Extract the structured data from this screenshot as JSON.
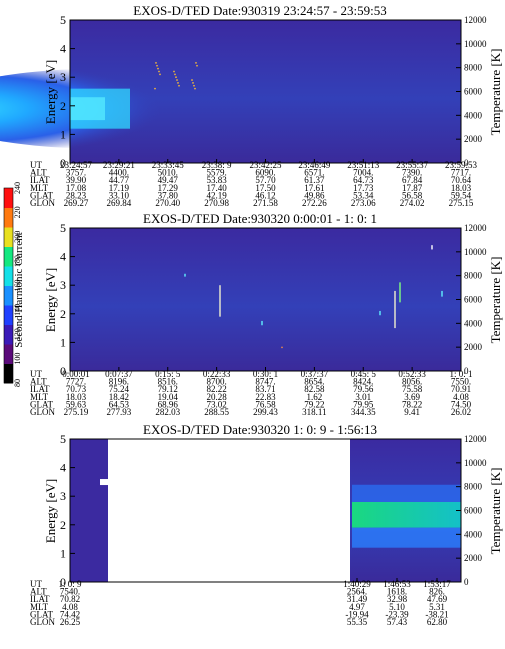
{
  "chart_data": [
    {
      "type": "heatmap",
      "title": "EXOS-D/TED   Date:930319  23:24:57 - 23:59:53",
      "ylabel": "Energy [eV]",
      "y2label": "Temperature [K]",
      "ylim": [
        0,
        5
      ],
      "y2lim": [
        0,
        12000
      ],
      "yticks": [
        "0",
        "1",
        "2",
        "3",
        "4",
        "5"
      ],
      "y2ticks": [
        "0",
        "2000",
        "4000",
        "6000",
        "8000",
        "10000",
        "12000"
      ],
      "x_labels": [
        "23:24:57",
        "23:29:21",
        "23:33:45",
        "23:38: 9",
        "23:42:25",
        "23:46:49",
        "23:51:13",
        "23:55:37",
        "23:59:53"
      ],
      "data_coverage": "full",
      "features": "broad enhancement between 1 and 3 eV fading after 23:39",
      "orbit_rows": [
        {
          "name": "UT",
          "values": [
            "23:24:57",
            "23:29:21",
            "23:33:45",
            "23:38: 9",
            "23:42:25",
            "23:46:49",
            "23:51:13",
            "23:55:37",
            "23:59:53"
          ]
        },
        {
          "name": "ALT",
          "values": [
            "3757.",
            "4400.",
            "5010.",
            "5579.",
            "6090.",
            "6571.",
            "7004.",
            "7390.",
            "7717."
          ]
        },
        {
          "name": "ILAT",
          "values": [
            "39.90",
            "44.77",
            "49.47",
            "53.83",
            "57.70",
            "61.37",
            "64.73",
            "67.84",
            "70.64"
          ]
        },
        {
          "name": "MLT",
          "values": [
            "17.08",
            "17.19",
            "17.29",
            "17.40",
            "17.50",
            "17.61",
            "17.73",
            "17.87",
            "18.03"
          ]
        },
        {
          "name": "GLAT",
          "values": [
            "28.23",
            "33.10",
            "37.80",
            "42.19",
            "46.12",
            "49.86",
            "53.34",
            "56.58",
            "59.54"
          ]
        },
        {
          "name": "GLON",
          "values": [
            "269.27",
            "269.84",
            "270.40",
            "270.98",
            "271.58",
            "272.26",
            "273.06",
            "274.02",
            "275.15"
          ]
        }
      ]
    },
    {
      "type": "heatmap",
      "title": "EXOS-D/TED   Date:930320  0:00:01 - 1: 0: 1",
      "ylabel": "Energy [eV]",
      "y2label": "Temperature [K]",
      "ylim": [
        0,
        5
      ],
      "y2lim": [
        0,
        12000
      ],
      "yticks": [
        "0",
        "1",
        "2",
        "3",
        "4",
        "5"
      ],
      "y2ticks": [
        "0",
        "2000",
        "4000",
        "6000",
        "8000",
        "10000",
        "12000"
      ],
      "x_labels": [
        "0:00:01",
        "0:07:37",
        "0:15: 5",
        "0:22:33",
        "0:30: 1",
        "0:37:37",
        "0:45: 5",
        "0:52:33",
        "1: 0: 1"
      ],
      "data_coverage": "full",
      "features": "uniform low level with scattered spikes",
      "orbit_rows": [
        {
          "name": "UT",
          "values": [
            "0:00:01",
            "0:07:37",
            "0:15: 5",
            "0:22:33",
            "0:30: 1",
            "0:37:37",
            "0:45: 5",
            "0:52:33",
            "1: 0: 1"
          ]
        },
        {
          "name": "ALT",
          "values": [
            "7727.",
            "8196.",
            "8516.",
            "8700.",
            "8747.",
            "8654.",
            "8424.",
            "8056.",
            "7550."
          ]
        },
        {
          "name": "ILAT",
          "values": [
            "70.73",
            "75.24",
            "79.12",
            "82.22",
            "83.71",
            "82.58",
            "79.56",
            "75.58",
            "70.91"
          ]
        },
        {
          "name": "MLT",
          "values": [
            "18.03",
            "18.42",
            "19.04",
            "20.28",
            "22.83",
            "1.62",
            "3.01",
            "3.69",
            "4.08"
          ]
        },
        {
          "name": "GLAT",
          "values": [
            "59.63",
            "64.53",
            "68.96",
            "73.02",
            "76.58",
            "79.22",
            "79.95",
            "78.22",
            "74.50"
          ]
        },
        {
          "name": "GLON",
          "values": [
            "275.19",
            "277.93",
            "282.03",
            "288.55",
            "299.43",
            "318.11",
            "344.35",
            "9.41",
            "26.02"
          ]
        }
      ]
    },
    {
      "type": "heatmap",
      "title": "EXOS-D/TED   Date:930320  1: 0: 9 - 1:56:13",
      "ylabel": "Energy [eV]",
      "y2label": "Temperature [K]",
      "ylim": [
        0,
        5
      ],
      "y2lim": [
        0,
        12000
      ],
      "yticks": [
        "0",
        "1",
        "2",
        "3",
        "4",
        "5"
      ],
      "y2ticks": [
        "0",
        "2000",
        "4000",
        "6000",
        "8000",
        "10000",
        "12000"
      ],
      "x_labels": [
        "1: 0: 9",
        "1:40:29",
        "1:46:53",
        "1:53:17"
      ],
      "data_coverage": "partial",
      "features": "data only at start and after 1:40; enhancement 1-3 eV late in pass",
      "orbit_rows": [
        {
          "name": "UT",
          "values": [
            "1: 0: 9",
            "1:40:29",
            "1:46:53",
            "1:53:17"
          ]
        },
        {
          "name": "ALT",
          "values": [
            "7540.",
            "2564.",
            "1618.",
            "826."
          ]
        },
        {
          "name": "ILAT",
          "values": [
            "70.82",
            "31.49",
            "32.98",
            "47.69"
          ]
        },
        {
          "name": "MLT",
          "values": [
            "4.08",
            "4.97",
            "5.10",
            "5.31"
          ]
        },
        {
          "name": "GLAT",
          "values": [
            "74.42",
            "-19.94",
            "-23.39",
            "-38.21"
          ]
        },
        {
          "name": "GLON",
          "values": [
            "26.25",
            "55.35",
            "57.43",
            "62.80"
          ]
        }
      ]
    }
  ],
  "colorbar": {
    "label": "Second Harmonic Current",
    "ticks": [
      "80",
      "100",
      "120",
      "140",
      "160",
      "180",
      "200",
      "220",
      "240"
    ],
    "colors": [
      "#000000",
      "#5a0a7a",
      "#3a1ab8",
      "#2040ff",
      "#1a90ff",
      "#14e0e8",
      "#14e880",
      "#e8e020",
      "#ff7a10",
      "#ff1010"
    ]
  }
}
